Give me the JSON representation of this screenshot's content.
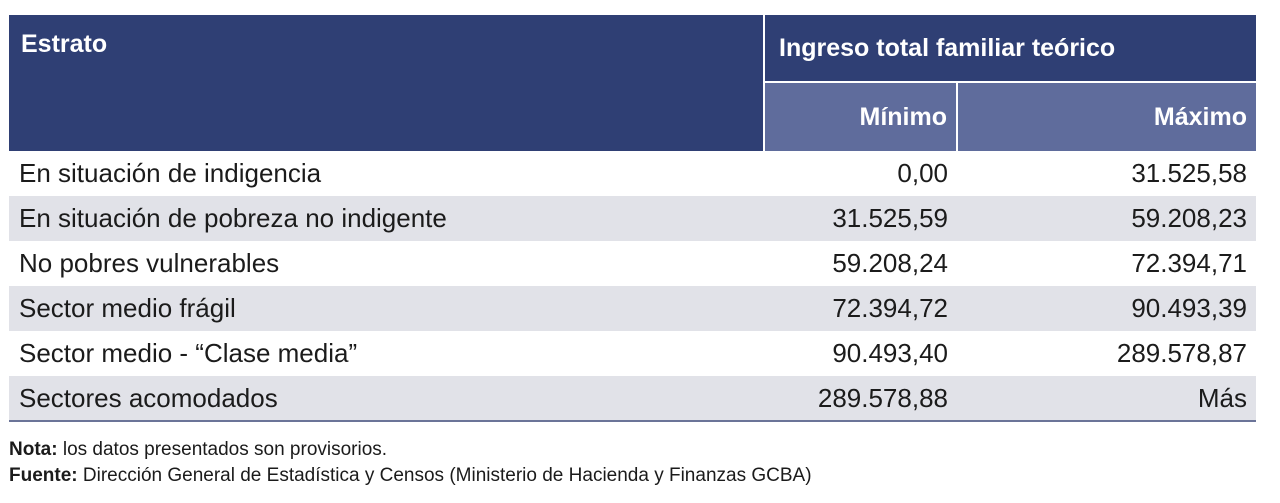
{
  "table": {
    "header": {
      "estrato": "Estrato",
      "group": "Ingreso total familiar teórico",
      "min": "Mínimo",
      "max": "Máximo"
    },
    "rows": [
      {
        "estrato": "En situación de indigencia",
        "min": "0,00",
        "max": "31.525,58"
      },
      {
        "estrato": "En situación de pobreza no indigente",
        "min": "31.525,59",
        "max": "59.208,23"
      },
      {
        "estrato": "No pobres vulnerables",
        "min": "59.208,24",
        "max": "72.394,71"
      },
      {
        "estrato": "Sector medio frágil",
        "min": "72.394,72",
        "max": "90.493,39"
      },
      {
        "estrato": "Sector medio - “Clase media”",
        "min": "90.493,40",
        "max": "289.578,87"
      },
      {
        "estrato": "Sectores acomodados",
        "min": "289.578,88",
        "max": "Más"
      }
    ]
  },
  "notes": {
    "nota_label": "Nota:",
    "nota_text": " los datos presentados son provisorios.",
    "fuente_label": "Fuente:",
    "fuente_text": " Dirección General de Estadística y Censos (Ministerio de Hacienda y Finanzas GCBA)"
  },
  "colors": {
    "header_dark": "#2f3f74",
    "header_light": "#5f6c9c",
    "row_stripe": "#e1e2e8"
  }
}
